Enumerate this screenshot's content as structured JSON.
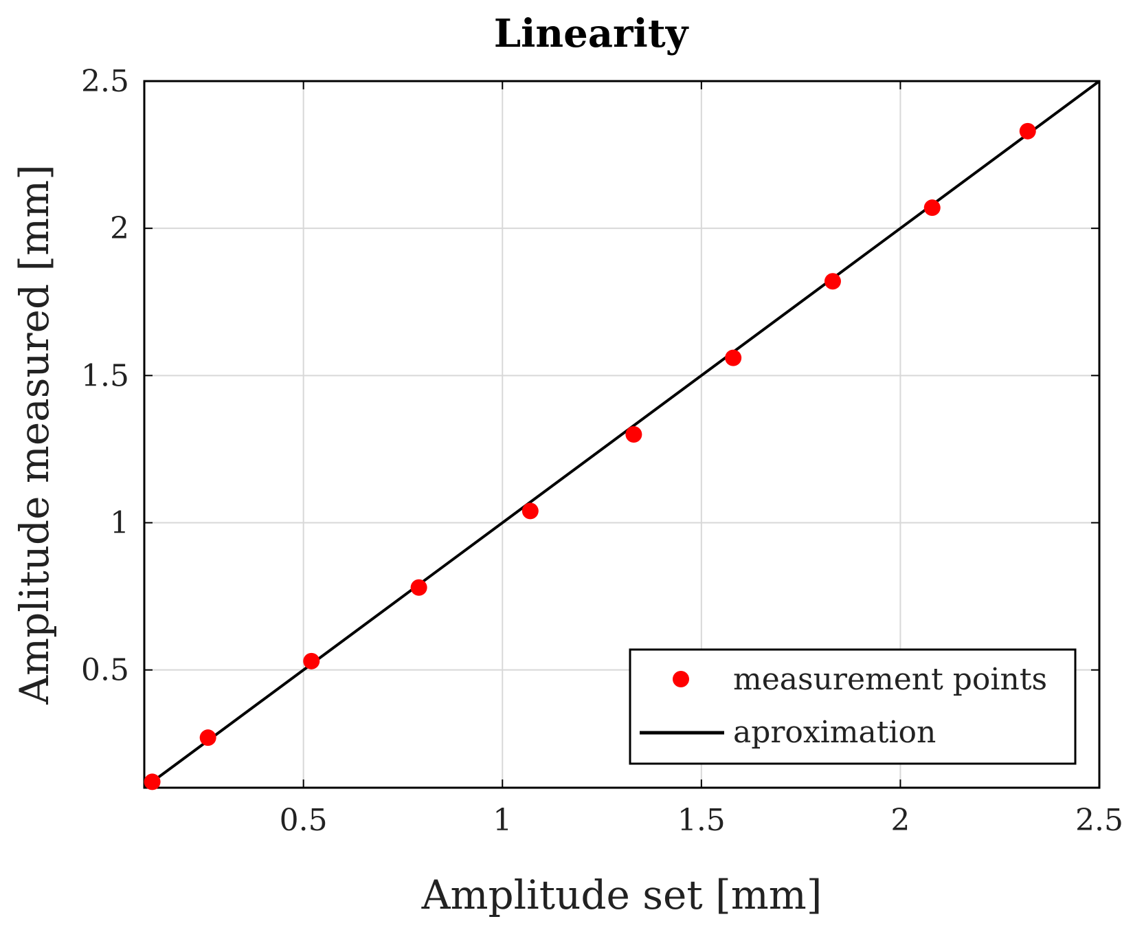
{
  "chart_data": {
    "type": "scatter",
    "title": "Linearity",
    "xlabel": "Amplitude set [mm]",
    "ylabel": "Amplitude measured [mm]",
    "xlim": [
      0.1,
      2.5
    ],
    "ylim": [
      0.1,
      2.5
    ],
    "xticks": [
      0.5,
      1,
      1.5,
      2,
      2.5
    ],
    "xtick_labels": [
      "0.5",
      "1",
      "1.5",
      "2",
      "2.5"
    ],
    "yticks": [
      0.5,
      1,
      1.5,
      2,
      2.5
    ],
    "ytick_labels": [
      "0.5",
      "1",
      "1.5",
      "2",
      "2.5"
    ],
    "grid": true,
    "legend_position": "bottom-right",
    "series": [
      {
        "name": "measurement points",
        "kind": "scatter",
        "color": "#ff0000",
        "x": [
          0.12,
          0.26,
          0.52,
          0.79,
          1.07,
          1.33,
          1.58,
          1.83,
          2.08,
          2.32
        ],
        "y": [
          0.12,
          0.27,
          0.53,
          0.78,
          1.04,
          1.3,
          1.56,
          1.82,
          2.07,
          2.33
        ]
      },
      {
        "name": "aproximation",
        "kind": "line",
        "color": "#000000",
        "x": [
          0.1,
          2.5
        ],
        "y": [
          0.1,
          2.5
        ]
      }
    ]
  }
}
